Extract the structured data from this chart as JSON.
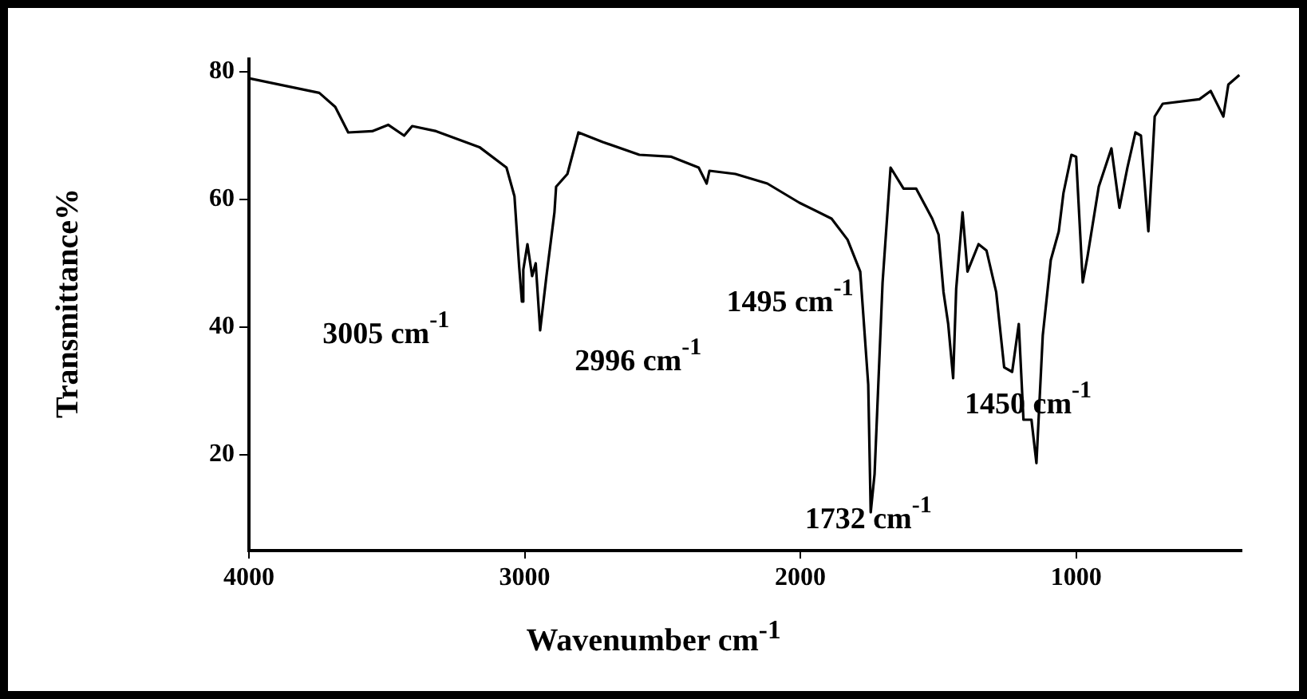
{
  "chart_data": {
    "type": "line",
    "xlabel": "Wavenumber cm$^{-1}$",
    "ylabel": "Transmittance%",
    "x": [
      4000,
      3745,
      3687,
      3640,
      3553,
      3495,
      3437,
      3408,
      3321,
      3164,
      3066,
      3037,
      3020,
      3010,
      3005,
      2990,
      2973,
      2960,
      2944,
      2921,
      2892,
      2886,
      2845,
      2805,
      2717,
      2584,
      2468,
      2369,
      2340,
      2330,
      2236,
      2120,
      2004,
      1887,
      1829,
      1783,
      1754,
      1745,
      1731,
      1702,
      1673,
      1626,
      1580,
      1522,
      1499,
      1481,
      1464,
      1446,
      1435,
      1412,
      1394,
      1354,
      1325,
      1290,
      1261,
      1232,
      1208,
      1191,
      1162,
      1144,
      1121,
      1092,
      1063,
      1046,
      1017,
      1000,
      976,
      959,
      918,
      872,
      843,
      814,
      785,
      765,
      738,
      715,
      686,
      553,
      512,
      466,
      448,
      408
    ],
    "series": [
      {
        "color": "#000000",
        "values": [
          79,
          76.7,
          74.5,
          70.5,
          70.7,
          71.7,
          70,
          71.5,
          70.7,
          68.2,
          65,
          60.5,
          49.5,
          44,
          49,
          53,
          48,
          50,
          39.5,
          48,
          58,
          62,
          64,
          70.5,
          69,
          67,
          66.7,
          65,
          62.5,
          64.5,
          64,
          62.5,
          59.5,
          57,
          53.7,
          48.7,
          31,
          11,
          17,
          47,
          65,
          61.7,
          61.7,
          57,
          54.5,
          45.5,
          40.5,
          32,
          46,
          58,
          48.7,
          53,
          52,
          45.5,
          33.7,
          33,
          40.5,
          25.5,
          25.5,
          18.7,
          38.7,
          50.5,
          55,
          61,
          67,
          66.7,
          47,
          51,
          62,
          68,
          58.7,
          65,
          70.5,
          70,
          55,
          73,
          75,
          75.7,
          77,
          73,
          78,
          79.5
        ]
      }
    ],
    "xlim": [
      4000,
      400
    ],
    "xticks": [
      4000,
      3000,
      2000,
      1000
    ],
    "ylim": [
      5,
      82
    ],
    "yticks": [
      20,
      40,
      60,
      80
    ],
    "grid": false,
    "legend": false,
    "marker": "none",
    "line_style": "solid",
    "annotations": [
      "3005 cm$^{-1}$",
      "2996 cm$^{-1}$",
      "1495 cm$^{-1}$",
      "1450 cm$^{-1}$",
      "1732 cm$^{-1}$"
    ]
  }
}
